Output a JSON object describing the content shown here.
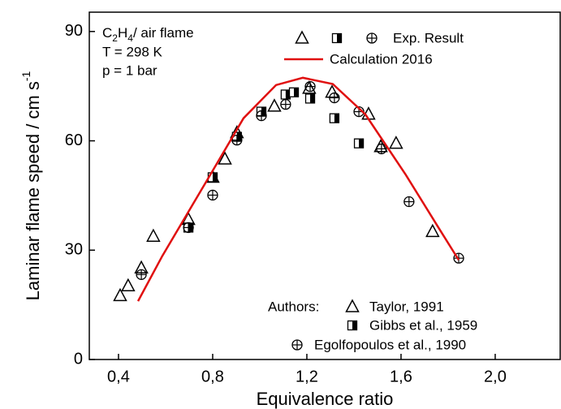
{
  "chart_data": {
    "type": "scatter",
    "annotation_parts": [
      "C",
      "2",
      "H",
      "4",
      "/ air flame"
    ],
    "annotation_lines": [
      "T = 298 K",
      "p = 1 bar"
    ],
    "legend_exp_label": "Exp. Result",
    "legend_authors_label": "Authors:",
    "x_label": "Equivalence ratio",
    "y_label": "Laminar flame speed  / cm s",
    "y_label_sup": "-1",
    "xlim": [
      0.276,
      2.276
    ],
    "ylim": [
      0,
      95.3
    ],
    "xticks": [
      {
        "value": 0.4,
        "label": "0,4"
      },
      {
        "value": 0.8,
        "label": "0,8"
      },
      {
        "value": 1.2,
        "label": "1,2"
      },
      {
        "value": 1.6,
        "label": "1,6"
      },
      {
        "value": 2.0,
        "label": "2,0"
      }
    ],
    "yticks": [
      0,
      30,
      60,
      90
    ],
    "series": [
      {
        "name": "Taylor, 1991",
        "color": "#000000",
        "marker": "triangle",
        "x": [
          0.407,
          0.441,
          0.497,
          0.548,
          0.697,
          0.8,
          0.852,
          0.903,
          1.062,
          1.21,
          1.307,
          1.462,
          1.514,
          1.579,
          1.734
        ],
        "values": [
          17.5,
          20.2,
          25.1,
          33.8,
          38.4,
          50,
          55,
          62.2,
          69.5,
          74.4,
          73.3,
          67.3,
          58.4,
          59.3,
          35.1
        ]
      },
      {
        "name": "Gibbs et al., 1959",
        "color": "#000000",
        "marker": "half-square",
        "x": [
          0.697,
          0.8,
          0.903,
          1.007,
          1.11,
          1.145,
          1.214,
          1.317,
          1.421
        ],
        "values": [
          36.2,
          50,
          61.1,
          68,
          72.7,
          73.3,
          71.6,
          66.2,
          59.3
        ]
      },
      {
        "name": "Egolfopoulos et al., 1990",
        "color": "#000000",
        "marker": "circle-plus",
        "x": [
          0.497,
          0.697,
          0.8,
          0.903,
          1.007,
          1.11,
          1.214,
          1.317,
          1.421,
          1.517,
          1.634,
          1.845
        ],
        "values": [
          23.3,
          36.2,
          45.1,
          60.2,
          66.9,
          70,
          74.9,
          71.8,
          68,
          57.8,
          43.3,
          27.8
        ]
      },
      {
        "name": "Calculation 2016",
        "color": "#e01010",
        "x": [
          0.483,
          0.586,
          0.8,
          0.931,
          1.069,
          1.183,
          1.31,
          1.448,
          1.62,
          1.759,
          1.845
        ],
        "values": [
          16,
          28.4,
          51.8,
          66.2,
          75.3,
          77.3,
          75.6,
          67.3,
          50.7,
          36.2,
          27.3
        ]
      }
    ]
  }
}
